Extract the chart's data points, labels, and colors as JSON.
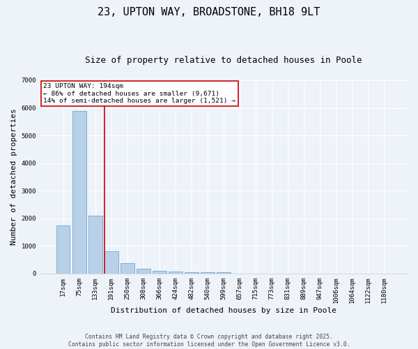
{
  "title": "23, UPTON WAY, BROADSTONE, BH18 9LT",
  "subtitle": "Size of property relative to detached houses in Poole",
  "xlabel": "Distribution of detached houses by size in Poole",
  "ylabel": "Number of detached properties",
  "categories": [
    "17sqm",
    "75sqm",
    "133sqm",
    "191sqm",
    "250sqm",
    "308sqm",
    "366sqm",
    "424sqm",
    "482sqm",
    "540sqm",
    "599sqm",
    "657sqm",
    "715sqm",
    "773sqm",
    "831sqm",
    "889sqm",
    "947sqm",
    "1006sqm",
    "1064sqm",
    "1122sqm",
    "1180sqm"
  ],
  "values": [
    1750,
    5900,
    2100,
    800,
    370,
    175,
    100,
    70,
    55,
    50,
    45,
    10,
    5,
    3,
    2,
    2,
    1,
    1,
    1,
    0,
    0
  ],
  "bar_color": "#b8d0e8",
  "bar_edge_color": "#6aaad4",
  "vline_x_index": 3,
  "vline_color": "#cc0000",
  "annotation_text": "23 UPTON WAY: 194sqm\n← 86% of detached houses are smaller (9,671)\n14% of semi-detached houses are larger (1,521) →",
  "annotation_box_facecolor": "#ffffff",
  "annotation_box_edgecolor": "#cc0000",
  "background_color": "#eef2f9",
  "plot_background_color": "#eef2f9",
  "grid_color": "#ffffff",
  "ylim": [
    0,
    7000
  ],
  "yticks": [
    0,
    1000,
    2000,
    3000,
    4000,
    5000,
    6000,
    7000
  ],
  "footer_line1": "Contains HM Land Registry data © Crown copyright and database right 2025.",
  "footer_line2": "Contains public sector information licensed under the Open Government Licence v3.0.",
  "title_fontsize": 11,
  "subtitle_fontsize": 9,
  "tick_fontsize": 6.5,
  "ylabel_fontsize": 8,
  "xlabel_fontsize": 8,
  "annotation_fontsize": 6.8,
  "footer_fontsize": 5.8
}
